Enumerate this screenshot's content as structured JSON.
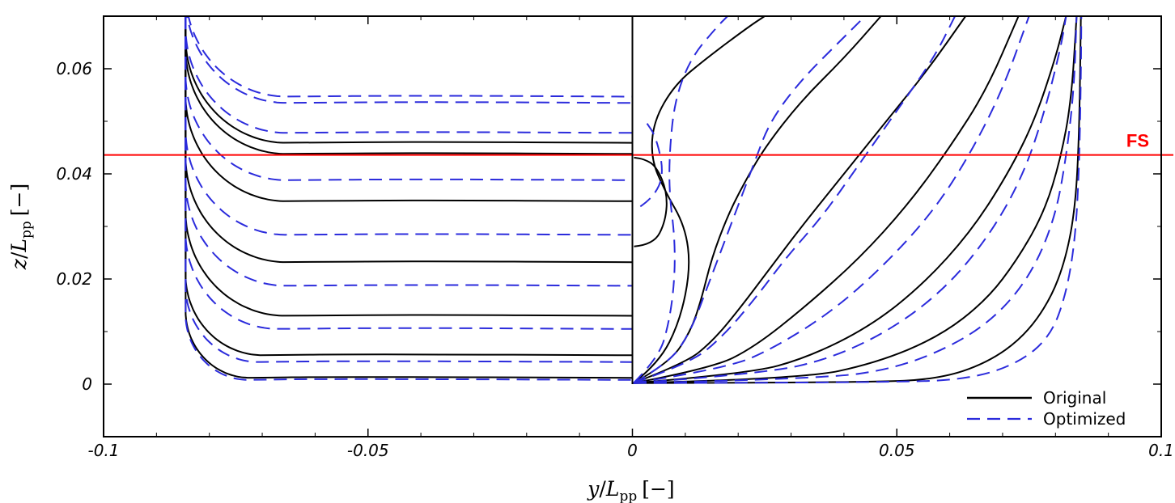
{
  "chart_data": {
    "type": "line",
    "xlabel": {
      "var": "y",
      "sub": "pp",
      "unit": "[−]"
    },
    "ylabel": {
      "var": "z",
      "sub": "pp",
      "unit": "[−]"
    },
    "xlim": [
      -0.1,
      0.1
    ],
    "ylim": [
      -0.01,
      0.07
    ],
    "x_ticks": [
      -0.1,
      -0.05,
      0,
      0.05,
      0.1
    ],
    "x_tick_labels": [
      "-0.1",
      "-0.05",
      "0",
      "0.05",
      "0.1"
    ],
    "y_ticks": [
      0,
      0.02,
      0.04,
      0.06
    ],
    "y_tick_labels": [
      "0",
      "0.02",
      "0.04",
      "0.06"
    ],
    "grid": false,
    "legend": {
      "placement": "bottom-right",
      "entries": [
        "Original",
        "Optimized"
      ]
    },
    "free_surface": {
      "z": 0.0436,
      "label": "FS",
      "color": "#ff0000"
    },
    "colors": {
      "original": "#000000",
      "optimized": "#2b2bdc"
    },
    "centerline_x": 0,
    "half_beam": 0.0845,
    "series": [
      {
        "name": "Original",
        "style": "solid",
        "stern_z": [
          0.0459,
          0.0438,
          0.0348,
          0.0232,
          0.013,
          0.0055,
          0.0012
        ],
        "bow": [
          [
            [
              0.0003,
              0.0262
            ],
            [
              0.004,
              0.0265
            ],
            [
              0.0063,
              0.031
            ],
            [
              0.0066,
              0.0365
            ],
            [
              0.0045,
              0.0415
            ],
            [
              0.0022,
              0.0428
            ],
            [
              0.0003,
              0.0431
            ]
          ],
          [
            [
              0.0002,
              0.0002
            ],
            [
              0.005,
              0.004
            ],
            [
              0.009,
              0.012
            ],
            [
              0.011,
              0.022
            ],
            [
              0.01,
              0.03
            ],
            [
              0.006,
              0.037
            ],
            [
              0.0035,
              0.043
            ],
            [
              0.004,
              0.05
            ],
            [
              0.008,
              0.057
            ],
            [
              0.014,
              0.062
            ],
            [
              0.022,
              0.068
            ],
            [
              0.025,
              0.07
            ]
          ],
          [
            [
              0.0002,
              0.0002
            ],
            [
              0.007,
              0.004
            ],
            [
              0.011,
              0.01
            ],
            [
              0.013,
              0.016
            ],
            [
              0.015,
              0.024
            ],
            [
              0.018,
              0.032
            ],
            [
              0.021,
              0.038
            ],
            [
              0.025,
              0.045
            ],
            [
              0.032,
              0.054
            ],
            [
              0.04,
              0.062
            ],
            [
              0.047,
              0.07
            ]
          ],
          [
            [
              0.0002,
              0.0002
            ],
            [
              0.01,
              0.004
            ],
            [
              0.015,
              0.008
            ],
            [
              0.02,
              0.014
            ],
            [
              0.026,
              0.022
            ],
            [
              0.032,
              0.03
            ],
            [
              0.04,
              0.04
            ],
            [
              0.048,
              0.05
            ],
            [
              0.056,
              0.06
            ],
            [
              0.063,
              0.07
            ]
          ],
          [
            [
              0.0002,
              0.0002
            ],
            [
              0.015,
              0.003
            ],
            [
              0.023,
              0.007
            ],
            [
              0.033,
              0.015
            ],
            [
              0.043,
              0.024
            ],
            [
              0.052,
              0.034
            ],
            [
              0.06,
              0.045
            ],
            [
              0.067,
              0.056
            ],
            [
              0.073,
              0.07
            ]
          ],
          [
            [
              0.0002,
              0.0002
            ],
            [
              0.022,
              0.002
            ],
            [
              0.033,
              0.005
            ],
            [
              0.045,
              0.011
            ],
            [
              0.055,
              0.019
            ],
            [
              0.064,
              0.029
            ],
            [
              0.071,
              0.04
            ],
            [
              0.076,
              0.05
            ],
            [
              0.08,
              0.062
            ],
            [
              0.082,
              0.07
            ]
          ],
          [
            [
              0.0002,
              0.0002
            ],
            [
              0.032,
              0.001
            ],
            [
              0.046,
              0.004
            ],
            [
              0.058,
              0.009
            ],
            [
              0.067,
              0.016
            ],
            [
              0.073,
              0.024
            ],
            [
              0.078,
              0.033
            ],
            [
              0.081,
              0.043
            ],
            [
              0.083,
              0.054
            ],
            [
              0.084,
              0.07
            ]
          ],
          [
            [
              0.0002,
              0.0002
            ],
            [
              0.045,
              0.0003
            ],
            [
              0.058,
              0.001
            ],
            [
              0.067,
              0.004
            ],
            [
              0.074,
              0.009
            ],
            [
              0.079,
              0.016
            ],
            [
              0.082,
              0.024
            ],
            [
              0.0838,
              0.034
            ],
            [
              0.0845,
              0.048
            ],
            [
              0.0848,
              0.07
            ]
          ]
        ]
      },
      {
        "name": "Optimized",
        "style": "dashed",
        "stern_z": [
          0.0547,
          0.0535,
          0.0478,
          0.0388,
          0.0284,
          0.0187,
          0.0105,
          0.0042,
          0.0008
        ],
        "bow": [
          [
            [
              0.0015,
              0.0338
            ],
            [
              0.004,
              0.0355
            ],
            [
              0.006,
              0.04
            ],
            [
              0.0045,
              0.047
            ],
            [
              0.0025,
              0.05
            ]
          ],
          [
            [
              0.0002,
              0.0002
            ],
            [
              0.005,
              0.005
            ],
            [
              0.007,
              0.012
            ],
            [
              0.008,
              0.02
            ],
            [
              0.008,
              0.028
            ],
            [
              0.007,
              0.036
            ],
            [
              0.007,
              0.044
            ],
            [
              0.008,
              0.054
            ],
            [
              0.011,
              0.062
            ],
            [
              0.016,
              0.068
            ],
            [
              0.018,
              0.07
            ]
          ],
          [
            [
              0.0002,
              0.0002
            ],
            [
              0.007,
              0.004
            ],
            [
              0.011,
              0.01
            ],
            [
              0.014,
              0.018
            ],
            [
              0.017,
              0.026
            ],
            [
              0.02,
              0.034
            ],
            [
              0.023,
              0.042
            ],
            [
              0.026,
              0.05
            ],
            [
              0.032,
              0.058
            ],
            [
              0.04,
              0.066
            ],
            [
              0.044,
              0.07
            ]
          ],
          [
            [
              0.0002,
              0.0002
            ],
            [
              0.011,
              0.004
            ],
            [
              0.017,
              0.009
            ],
            [
              0.023,
              0.016
            ],
            [
              0.029,
              0.024
            ],
            [
              0.036,
              0.032
            ],
            [
              0.043,
              0.042
            ],
            [
              0.05,
              0.052
            ],
            [
              0.057,
              0.062
            ],
            [
              0.061,
              0.07
            ]
          ],
          [
            [
              0.0002,
              0.0002
            ],
            [
              0.018,
              0.003
            ],
            [
              0.027,
              0.007
            ],
            [
              0.038,
              0.014
            ],
            [
              0.048,
              0.023
            ],
            [
              0.057,
              0.033
            ],
            [
              0.064,
              0.044
            ],
            [
              0.07,
              0.056
            ],
            [
              0.075,
              0.07
            ]
          ],
          [
            [
              0.0002,
              0.0002
            ],
            [
              0.025,
              0.002
            ],
            [
              0.038,
              0.005
            ],
            [
              0.05,
              0.011
            ],
            [
              0.06,
              0.019
            ],
            [
              0.068,
              0.029
            ],
            [
              0.074,
              0.04
            ],
            [
              0.078,
              0.052
            ],
            [
              0.081,
              0.064
            ],
            [
              0.082,
              0.07
            ]
          ],
          [
            [
              0.0002,
              0.0002
            ],
            [
              0.036,
              0.001
            ],
            [
              0.05,
              0.003
            ],
            [
              0.062,
              0.008
            ],
            [
              0.07,
              0.014
            ],
            [
              0.076,
              0.022
            ],
            [
              0.08,
              0.032
            ],
            [
              0.082,
              0.043
            ],
            [
              0.0835,
              0.056
            ],
            [
              0.084,
              0.07
            ]
          ],
          [
            [
              0.0002,
              0.0002
            ],
            [
              0.05,
              0.0003
            ],
            [
              0.064,
              0.001
            ],
            [
              0.073,
              0.004
            ],
            [
              0.079,
              0.009
            ],
            [
              0.082,
              0.017
            ],
            [
              0.0838,
              0.028
            ],
            [
              0.0845,
              0.042
            ],
            [
              0.0848,
              0.058
            ],
            [
              0.0849,
              0.07
            ]
          ]
        ]
      }
    ]
  }
}
